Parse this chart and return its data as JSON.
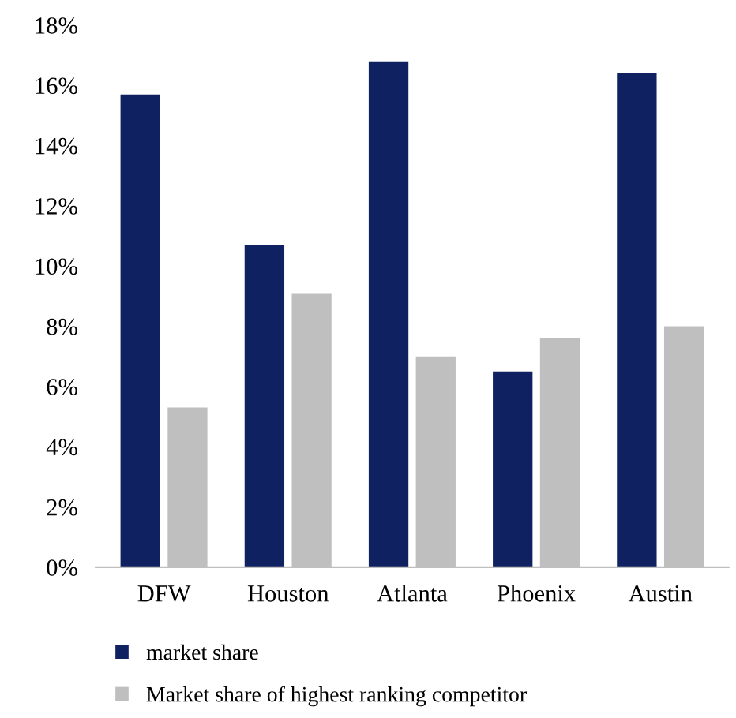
{
  "chart_data": {
    "type": "bar",
    "categories": [
      "DFW",
      "Houston",
      "Atlanta",
      "Phoenix",
      "Austin"
    ],
    "series": [
      {
        "name": "market share",
        "color": "#0f2160",
        "values": [
          15.7,
          10.7,
          16.8,
          6.5,
          16.4
        ]
      },
      {
        "name": "Market share of highest ranking competitor",
        "color": "#bfbfbf",
        "values": [
          5.3,
          9.1,
          7.0,
          7.6,
          8.0
        ]
      }
    ],
    "ylim": [
      0,
      18
    ],
    "yticks": [
      {
        "value": 0,
        "label": "0%"
      },
      {
        "value": 2,
        "label": "2%"
      },
      {
        "value": 4,
        "label": "4%"
      },
      {
        "value": 6,
        "label": "6%"
      },
      {
        "value": 8,
        "label": "8%"
      },
      {
        "value": 10,
        "label": "10%"
      },
      {
        "value": 12,
        "label": "12%"
      },
      {
        "value": 14,
        "label": "14%"
      },
      {
        "value": 16,
        "label": "16%"
      },
      {
        "value": 18,
        "label": "18%"
      }
    ],
    "grid": false,
    "legend": "bottom"
  }
}
